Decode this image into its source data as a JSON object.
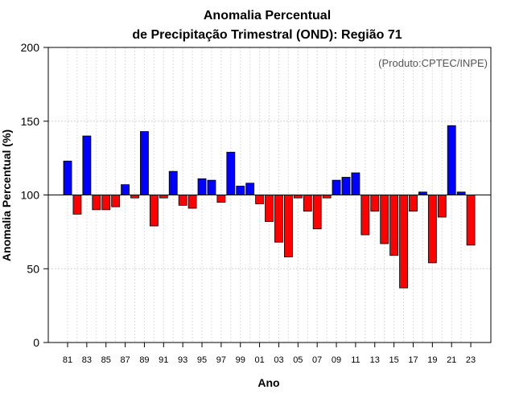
{
  "chart_data": {
    "type": "bar",
    "title_line1": "Anomalia Percentual",
    "title_line2": "de Precipitação Trimestral (OND): Região 71",
    "xlabel": "Ano",
    "ylabel": "Anomalia Percentual (%)",
    "product_label": "(Produto:CPTEC/INPE)",
    "ylim": [
      0,
      200
    ],
    "yticks": [
      "0",
      "50",
      "100",
      "150",
      "200"
    ],
    "ytick_values": [
      0,
      50,
      100,
      150,
      200
    ],
    "baseline": 100,
    "grid": true,
    "colors": {
      "above": "#0000ff",
      "below": "#ff0000",
      "edge": "#000000"
    },
    "categories": [
      "81",
      "82",
      "83",
      "84",
      "85",
      "86",
      "87",
      "88",
      "89",
      "90",
      "91",
      "92",
      "93",
      "94",
      "95",
      "96",
      "97",
      "98",
      "99",
      "00",
      "01",
      "02",
      "03",
      "04",
      "05",
      "06",
      "07",
      "08",
      "09",
      "10",
      "11",
      "12",
      "13",
      "14",
      "15",
      "16",
      "17",
      "18",
      "19",
      "20",
      "21",
      "22",
      "23"
    ],
    "tick_labels": [
      "81",
      "83",
      "85",
      "87",
      "89",
      "91",
      "93",
      "95",
      "97",
      "99",
      "01",
      "03",
      "05",
      "07",
      "09",
      "11",
      "13",
      "15",
      "17",
      "19",
      "21",
      "23"
    ],
    "values": [
      123,
      87,
      140,
      90,
      90,
      92,
      107,
      98,
      143,
      79,
      98,
      116,
      93,
      91,
      111,
      110,
      95,
      129,
      106,
      108,
      94,
      82,
      68,
      58,
      98,
      89,
      77,
      98,
      110,
      112,
      115,
      73,
      89,
      67,
      59,
      37,
      89,
      102,
      54,
      85,
      147,
      102,
      66
    ]
  }
}
